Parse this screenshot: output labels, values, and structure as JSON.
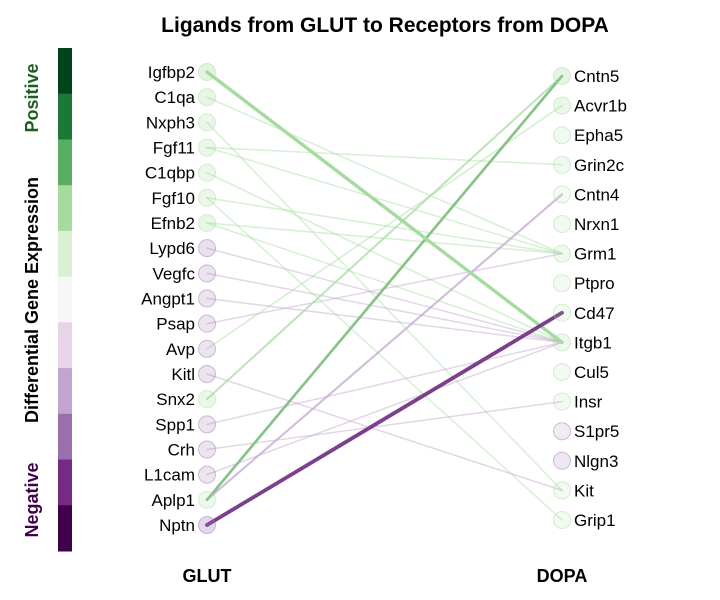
{
  "chart_data": {
    "type": "bipartite-network",
    "title": "Ligands from GLUT to Receptors from DOPA",
    "left_group": "GLUT",
    "right_group": "DOPA",
    "legend": {
      "label": "Differential Gene Expression",
      "positive_label": "Positive",
      "negative_label": "Negative",
      "colors": [
        "#00441b",
        "#1b7837",
        "#5aae61",
        "#a6dba0",
        "#d9f0d3",
        "#f7f7f7",
        "#e7d4e8",
        "#c2a5cf",
        "#9970ab",
        "#762a83",
        "#40004b"
      ]
    },
    "ligands": [
      {
        "name": "Igfbp2",
        "de": 0.45
      },
      {
        "name": "C1qa",
        "de": 0.3
      },
      {
        "name": "Nxph3",
        "de": 0.25
      },
      {
        "name": "Fgf11",
        "de": 0.25
      },
      {
        "name": "C1qbp",
        "de": 0.2
      },
      {
        "name": "Fgf10",
        "de": 0.2
      },
      {
        "name": "Efnb2",
        "de": 0.3
      },
      {
        "name": "Lypd6",
        "de": -0.2
      },
      {
        "name": "Vegfc",
        "de": -0.15
      },
      {
        "name": "Angpt1",
        "de": -0.15
      },
      {
        "name": "Psap",
        "de": -0.15
      },
      {
        "name": "Avp",
        "de": -0.15
      },
      {
        "name": "Kitl",
        "de": -0.15
      },
      {
        "name": "Snx2",
        "de": 0.25
      },
      {
        "name": "Spp1",
        "de": -0.15
      },
      {
        "name": "Crh",
        "de": -0.15
      },
      {
        "name": "L1cam",
        "de": -0.15
      },
      {
        "name": "Aplp1",
        "de": 0.15
      },
      {
        "name": "Nptn",
        "de": -0.35
      }
    ],
    "receptors": [
      {
        "name": "Cntn5",
        "de": 0.35
      },
      {
        "name": "Acvr1b",
        "de": 0.25
      },
      {
        "name": "Epha5",
        "de": 0.1
      },
      {
        "name": "Grin2c",
        "de": 0.1
      },
      {
        "name": "Cntn4",
        "de": 0.05
      },
      {
        "name": "Nrxn1",
        "de": 0.05
      },
      {
        "name": "Grm1",
        "de": 0.1
      },
      {
        "name": "Ptpro",
        "de": 0.05
      },
      {
        "name": "Cd47",
        "de": 0.05
      },
      {
        "name": "Itgb1",
        "de": 0.15
      },
      {
        "name": "Cul5",
        "de": 0.05
      },
      {
        "name": "Insr",
        "de": 0.05
      },
      {
        "name": "S1pr5",
        "de": -0.05
      },
      {
        "name": "Nlgn3",
        "de": -0.1
      },
      {
        "name": "Kit",
        "de": 0.05
      },
      {
        "name": "Grip1",
        "de": 0.05
      }
    ],
    "edges": [
      {
        "from": "Igfbp2",
        "to": "Itgb1",
        "strength": 0.85,
        "sign": 1
      },
      {
        "from": "C1qa",
        "to": "Grm1",
        "strength": 0.12,
        "sign": 1
      },
      {
        "from": "Nxph3",
        "to": "Kit",
        "strength": 0.12,
        "sign": 1
      },
      {
        "from": "Fgf11",
        "to": "Grin2c",
        "strength": 0.12,
        "sign": 1
      },
      {
        "from": "Fgf11",
        "to": "Grm1",
        "strength": 0.12,
        "sign": 1
      },
      {
        "from": "C1qbp",
        "to": "Itgb1",
        "strength": 0.14,
        "sign": 1
      },
      {
        "from": "Fgf10",
        "to": "Grm1",
        "strength": 0.12,
        "sign": 1
      },
      {
        "from": "Fgf10",
        "to": "Grip1",
        "strength": 0.12,
        "sign": 1
      },
      {
        "from": "Efnb2",
        "to": "Grm1",
        "strength": 0.14,
        "sign": 1
      },
      {
        "from": "Efnb2",
        "to": "Itgb1",
        "strength": 0.12,
        "sign": 1
      },
      {
        "from": "Lypd6",
        "to": "Itgb1",
        "strength": 0.12,
        "sign": -1
      },
      {
        "from": "Vegfc",
        "to": "Itgb1",
        "strength": 0.12,
        "sign": -1
      },
      {
        "from": "Angpt1",
        "to": "Itgb1",
        "strength": 0.12,
        "sign": -1
      },
      {
        "from": "Psap",
        "to": "Grm1",
        "strength": 0.12,
        "sign": -1
      },
      {
        "from": "Avp",
        "to": "Acvr1b",
        "strength": 0.2,
        "sign": 1
      },
      {
        "from": "Kitl",
        "to": "Kit",
        "strength": 0.12,
        "sign": -1
      },
      {
        "from": "Snx2",
        "to": "Cntn5",
        "strength": 0.3,
        "sign": 1
      },
      {
        "from": "Spp1",
        "to": "Itgb1",
        "strength": 0.12,
        "sign": -1
      },
      {
        "from": "Crh",
        "to": "Insr",
        "strength": 0.12,
        "sign": -1
      },
      {
        "from": "L1cam",
        "to": "Itgb1",
        "strength": 0.12,
        "sign": -1
      },
      {
        "from": "Aplp1",
        "to": "Cntn5",
        "strength": 0.55,
        "sign": 1
      },
      {
        "from": "Aplp1",
        "to": "Cntn4",
        "strength": 0.35,
        "sign": -1
      },
      {
        "from": "Nptn",
        "to": "Cd47",
        "strength": 1.0,
        "sign": -1
      }
    ]
  }
}
